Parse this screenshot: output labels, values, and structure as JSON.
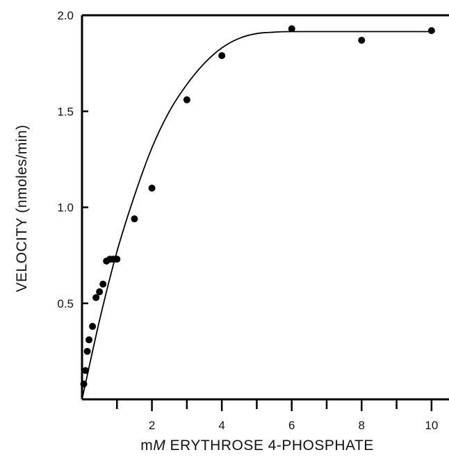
{
  "chart_data": {
    "type": "scatter",
    "xlabel_prefix": "m",
    "xlabel_unit": "M",
    "xlabel_rest": " ERYTHROSE 4-PHOSPHATE",
    "ylabel": "VELOCITY (nmoles/min)",
    "xlim": [
      0,
      10.5
    ],
    "ylim": [
      0,
      2.0
    ],
    "x_tick_labels": [
      "2",
      "4",
      "6",
      "8",
      "10"
    ],
    "y_tick_labels": [
      "0.5",
      "1.0",
      "1.5",
      "2.0"
    ],
    "x_major_ticks": [
      2,
      4,
      6,
      8,
      10
    ],
    "x_minor_ticks": [
      1,
      3,
      5,
      7,
      9
    ],
    "y_major_ticks": [
      0.5,
      1.0,
      1.5,
      2.0
    ],
    "series": [
      {
        "x": [
          0.05,
          0.1,
          0.15,
          0.2,
          0.3,
          0.4,
          0.5,
          0.6,
          0.7,
          0.8,
          0.9,
          1.0,
          1.5,
          2.0,
          3.0,
          4.0,
          6.0,
          8.0,
          10.0
        ],
        "y": [
          0.08,
          0.15,
          0.25,
          0.31,
          0.38,
          0.53,
          0.56,
          0.6,
          0.72,
          0.73,
          0.73,
          0.73,
          0.94,
          1.1,
          1.56,
          1.79,
          1.93,
          1.87,
          1.92
        ]
      }
    ],
    "fit_curve": {
      "x": [
        0,
        0.5,
        1.0,
        1.5,
        2.0,
        2.5,
        3.0,
        3.5,
        4.0,
        4.5,
        5.0,
        5.5,
        6.0,
        8.0,
        10.0
      ],
      "y": [
        0.0,
        0.41,
        0.77,
        1.06,
        1.31,
        1.5,
        1.64,
        1.75,
        1.83,
        1.88,
        1.905,
        1.912,
        1.915,
        1.915,
        1.915
      ]
    }
  }
}
